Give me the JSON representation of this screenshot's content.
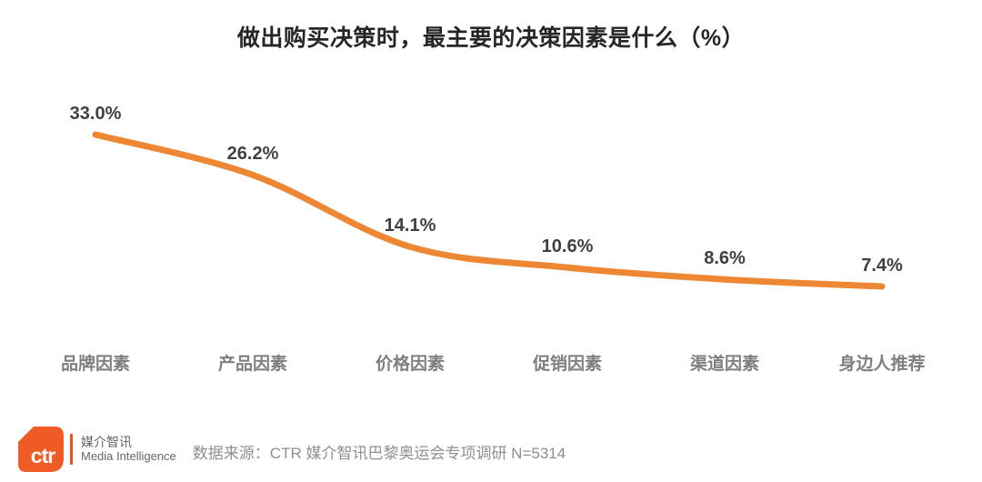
{
  "title": "做出购买决策时，最主要的决策因素是什么（%）",
  "chart_data": {
    "type": "line",
    "title": "做出购买决策时，最主要的决策因素是什么（%）",
    "categories": [
      "品牌因素",
      "产品因素",
      "价格因素",
      "促销因素",
      "渠道因素",
      "身边人推荐"
    ],
    "values": [
      33.0,
      26.2,
      14.1,
      10.6,
      8.6,
      7.4
    ],
    "point_labels": [
      "33.0%",
      "26.2%",
      "14.1%",
      "10.6%",
      "8.6%",
      "7.4%"
    ],
    "xlabel": "",
    "ylabel": "",
    "grid": false,
    "legend": "none",
    "line_color": "#ED8733",
    "label_color": "#404040",
    "category_color": "#7F7F7F"
  },
  "footer": {
    "logo_text": "ctr",
    "logo_color": "#EF5B25",
    "divider_color": "#E8511D",
    "brand_cn": "媒介智讯",
    "brand_en": "Media Intelligence",
    "source": "数据来源：CTR 媒介智讯巴黎奥运会专项调研 N=5314"
  }
}
